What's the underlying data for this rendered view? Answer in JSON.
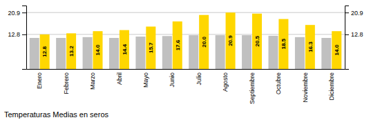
{
  "chart_data": {
    "type": "bar",
    "title": "Temperaturas Medias en seros",
    "categories": [
      "Enero",
      "Febrero",
      "Marzo",
      "Abril",
      "Mayo",
      "Junio",
      "Julio",
      "Agosto",
      "Septiembre",
      "Octubre",
      "Noviembre",
      "Diciembre"
    ],
    "series": [
      {
        "color": "#C0C0C0",
        "values": [
          11.5,
          11.5,
          11.8,
          11.5,
          12.0,
          12.2,
          12.5,
          12.5,
          12.5,
          12.3,
          11.8,
          11.5
        ]
      },
      {
        "color": "#FFD700",
        "values": [
          12.8,
          13.2,
          14.0,
          14.4,
          15.7,
          17.6,
          20.0,
          20.9,
          20.5,
          18.5,
          16.3,
          14.0
        ],
        "data_labels": true,
        "value_labels": [
          "12.8",
          "13.2",
          "14.0",
          "14.4",
          "15.7",
          "17.6",
          "20.0",
          "20.9",
          "20.5",
          "18.5",
          "16.3",
          "14.0"
        ]
      }
    ],
    "ylim": [
      0,
      23.5
    ],
    "yticks": [
      12.8,
      20.9
    ],
    "y2lim": [
      0,
      23.5
    ],
    "y2ticks": [
      12.8,
      20.9
    ],
    "grid": true
  }
}
